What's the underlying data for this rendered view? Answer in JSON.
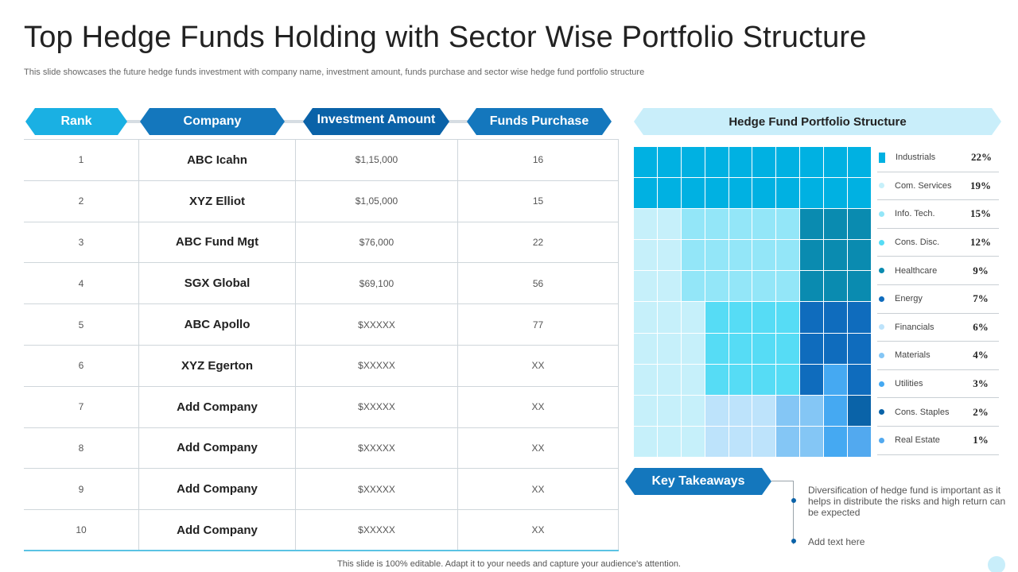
{
  "title": "Top Hedge Funds Holding with Sector Wise Portfolio Structure",
  "subtitle": "This slide showcases the future hedge funds investment with company name, investment amount, funds purchase and sector wise hedge fund portfolio structure",
  "table": {
    "headers": {
      "rank": "Rank",
      "company": "Company",
      "investment": "Investment Amount",
      "funds": "Funds Purchase"
    },
    "rows": [
      {
        "rank": "1",
        "company": "ABC Icahn",
        "investment": "$1,15,000",
        "funds": "16"
      },
      {
        "rank": "2",
        "company": "XYZ Elliot",
        "investment": "$1,05,000",
        "funds": "15"
      },
      {
        "rank": "3",
        "company": "ABC Fund Mgt",
        "investment": "$76,000",
        "funds": "22"
      },
      {
        "rank": "4",
        "company": "SGX Global",
        "investment": "$69,100",
        "funds": "56"
      },
      {
        "rank": "5",
        "company": "ABC Apollo",
        "investment": "$XXXXX",
        "funds": "77"
      },
      {
        "rank": "6",
        "company": "XYZ Egerton",
        "investment": "$XXXXX",
        "funds": "XX"
      },
      {
        "rank": "7",
        "company": "Add Company",
        "investment": "$XXXXX",
        "funds": "XX"
      },
      {
        "rank": "8",
        "company": "Add Company",
        "investment": "$XXXXX",
        "funds": "XX"
      },
      {
        "rank": "9",
        "company": "Add Company",
        "investment": "$XXXXX",
        "funds": "XX"
      },
      {
        "rank": "10",
        "company": "Add Company",
        "investment": "$XXXXX",
        "funds": "XX"
      }
    ]
  },
  "portfolio": {
    "title": "Hedge Fund Portfolio Structure",
    "sectors": [
      {
        "label": "Industrials",
        "value": "22%",
        "color": "#00b1e2"
      },
      {
        "label": "Com. Services",
        "value": "19%",
        "color": "#c6f0fa"
      },
      {
        "label": "Info. Tech.",
        "value": "15%",
        "color": "#93e6f8"
      },
      {
        "label": "Cons. Disc.",
        "value": "12%",
        "color": "#56dcf5"
      },
      {
        "label": "Healthcare",
        "value": "9%",
        "color": "#0a8bb0"
      },
      {
        "label": "Energy",
        "value": "7%",
        "color": "#0f6cbd"
      },
      {
        "label": "Financials",
        "value": "6%",
        "color": "#bde3fb"
      },
      {
        "label": "Materials",
        "value": "4%",
        "color": "#84c6f5"
      },
      {
        "label": "Utilities",
        "value": "3%",
        "color": "#45a9f2"
      },
      {
        "label": "Cons. Staples",
        "value": "2%",
        "color": "#0a63a8"
      },
      {
        "label": "Real Estate",
        "value": "1%",
        "color": "#52a9ef"
      }
    ]
  },
  "key_takeaways": {
    "title": "Key Takeaways",
    "items": [
      "Diversification of hedge fund is important as it helps in distribute the risks and high return can be expected",
      "Add text here"
    ]
  },
  "footer": "This slide is 100% editable.  Adapt it to your needs and capture your audience's attention."
}
